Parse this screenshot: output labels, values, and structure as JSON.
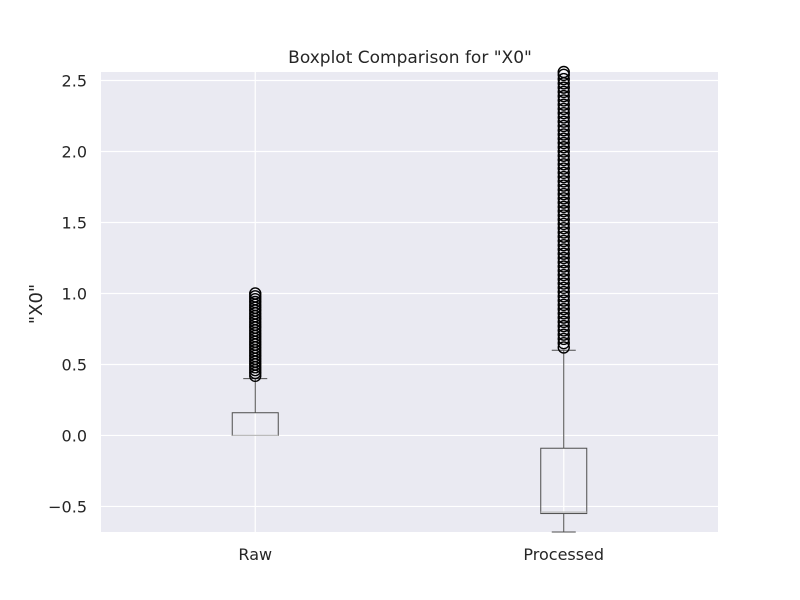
{
  "chart_data": {
    "type": "boxplot",
    "title": "Boxplot Comparison for \"X0\"",
    "xlabel": "",
    "ylabel": "\"X0\"",
    "ylim": [
      -0.68,
      2.56
    ],
    "yticks": [
      -0.5,
      0.0,
      0.5,
      1.0,
      1.5,
      2.0,
      2.5
    ],
    "ytick_labels": [
      "−0.5",
      "0.0",
      "0.5",
      "1.0",
      "1.5",
      "2.0",
      "2.5"
    ],
    "grid": true,
    "categories": [
      "Raw",
      "Processed"
    ],
    "boxes": [
      {
        "label": "Raw",
        "whisker_low": 0.0,
        "q1": 0.0,
        "median": 0.0,
        "q3": 0.16,
        "whisker_high": 0.4,
        "outliers": [
          0.42,
          0.44,
          0.46,
          0.48,
          0.5,
          0.52,
          0.54,
          0.56,
          0.58,
          0.6,
          0.62,
          0.64,
          0.66,
          0.68,
          0.7,
          0.72,
          0.74,
          0.76,
          0.78,
          0.8,
          0.82,
          0.84,
          0.86,
          0.88,
          0.9,
          0.92,
          0.94,
          0.96,
          0.98,
          1.0
        ]
      },
      {
        "label": "Processed",
        "whisker_low": -0.68,
        "q1": -0.55,
        "median": -0.54,
        "q3": -0.09,
        "whisker_high": 0.6,
        "outliers": [
          0.62,
          0.65,
          0.68,
          0.71,
          0.74,
          0.77,
          0.8,
          0.83,
          0.86,
          0.89,
          0.92,
          0.95,
          0.98,
          1.01,
          1.04,
          1.07,
          1.1,
          1.13,
          1.16,
          1.19,
          1.22,
          1.25,
          1.28,
          1.31,
          1.34,
          1.37,
          1.4,
          1.43,
          1.46,
          1.49,
          1.52,
          1.55,
          1.58,
          1.61,
          1.64,
          1.67,
          1.7,
          1.73,
          1.76,
          1.79,
          1.82,
          1.85,
          1.88,
          1.91,
          1.94,
          1.97,
          2.0,
          2.03,
          2.06,
          2.09,
          2.12,
          2.15,
          2.18,
          2.21,
          2.24,
          2.27,
          2.3,
          2.33,
          2.36,
          2.39,
          2.42,
          2.45,
          2.48,
          2.51,
          2.54,
          2.56
        ]
      }
    ],
    "colors": {
      "background": "#eaeaf2",
      "grid": "#ffffff",
      "box": "#4d4d4d",
      "whisker": "#4d4d4d",
      "median": "#bbbbbb",
      "outlier": "#000000",
      "text": "#262626"
    }
  }
}
